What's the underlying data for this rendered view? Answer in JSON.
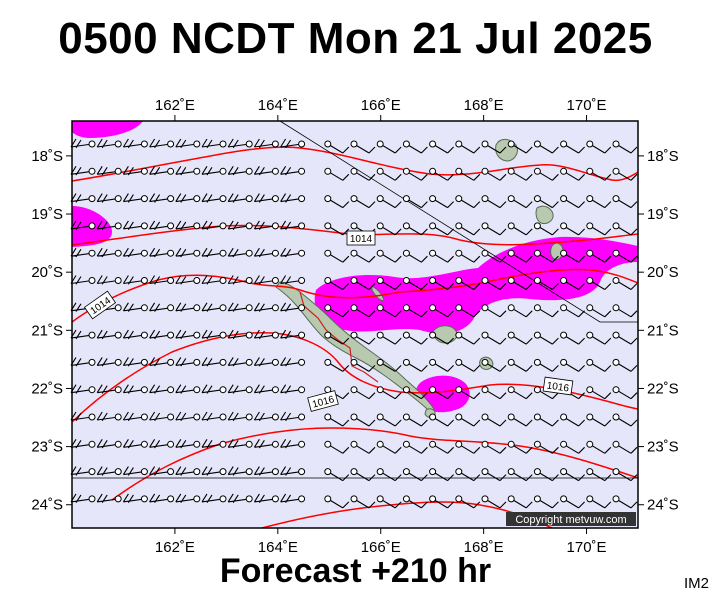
{
  "header": {
    "title": "0500 NCDT Mon 21 Jul 2025"
  },
  "footer": {
    "forecast_label": "Forecast +210 hr",
    "image_code": "IM2"
  },
  "map": {
    "lon_range": [
      160.0,
      171.0
    ],
    "lat_range": [
      -24.4,
      -17.4
    ],
    "lon_ticks": [
      {
        "value": 162,
        "label": "162˚E"
      },
      {
        "value": 164,
        "label": "164˚E"
      },
      {
        "value": 166,
        "label": "166˚E"
      },
      {
        "value": 168,
        "label": "168˚E"
      },
      {
        "value": 170,
        "label": "170˚E"
      }
    ],
    "lat_ticks": [
      {
        "value": -18,
        "label": "18˚S"
      },
      {
        "value": -19,
        "label": "19˚S"
      },
      {
        "value": -20,
        "label": "20˚S"
      },
      {
        "value": -21,
        "label": "21˚S"
      },
      {
        "value": -22,
        "label": "22˚S"
      },
      {
        "value": -23,
        "label": "23˚S"
      },
      {
        "value": -24,
        "label": "24˚S"
      }
    ],
    "isobar_labels": [
      {
        "text": "1014",
        "lon": 165.65,
        "lat": -19.2
      },
      {
        "text": "1014",
        "lon": 160.6,
        "lat": -20.4
      },
      {
        "text": "1016",
        "lon": 164.8,
        "lat": -22.2
      },
      {
        "text": "1016",
        "lon": 169.3,
        "lat": -21.9
      }
    ],
    "copyright": "Copyright metvuw.com",
    "colors": {
      "ocean": "#e6e6fa",
      "rain": "#ff00ff",
      "isobar": "#ff0000",
      "land": "#b9c9b0",
      "barb": "#000000"
    }
  }
}
